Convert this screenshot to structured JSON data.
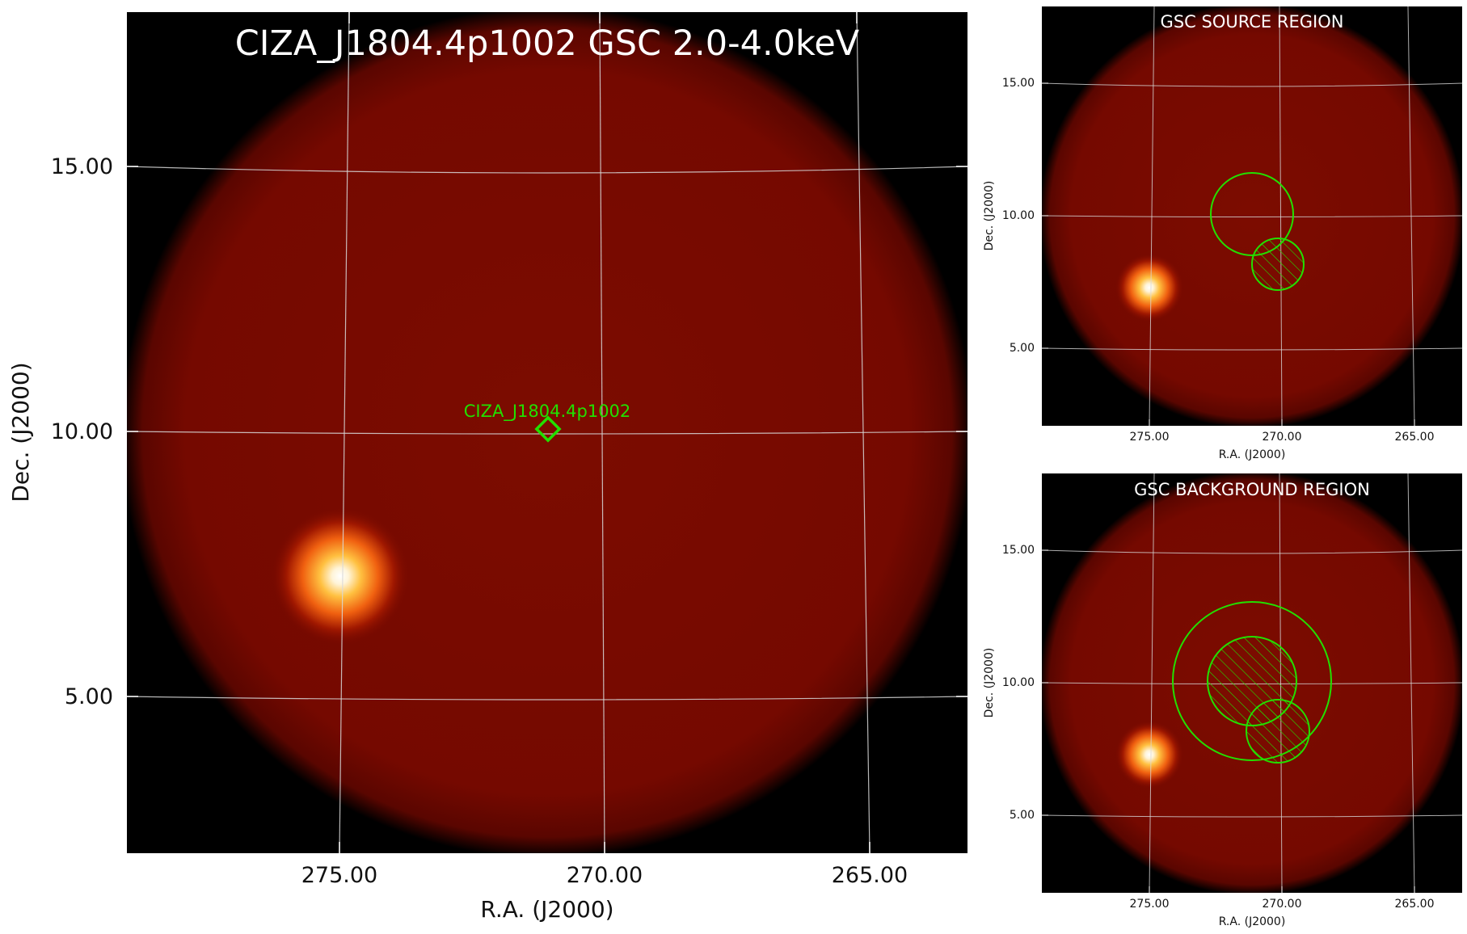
{
  "main_panel": {
    "title": "CIZA_J1804.4p1002 GSC 2.0-4.0keV",
    "xlabel": "R.A. (J2000)",
    "ylabel": "Dec. (J2000)",
    "xticks": [
      "275.00",
      "270.00",
      "265.00"
    ],
    "yticks": [
      "15.00",
      "10.00",
      "5.00"
    ],
    "source_label": "CIZA_J1804.4p1002",
    "marker_color": "#22e000"
  },
  "top_panel": {
    "title": "GSC SOURCE REGION",
    "xlabel": "R.A. (J2000)",
    "ylabel": "Dec. (J2000)",
    "xticks": [
      "275.00",
      "270.00",
      "265.00"
    ],
    "yticks": [
      "15.00",
      "10.00",
      "5.00"
    ]
  },
  "bottom_panel": {
    "title": "GSC BACKGROUND REGION",
    "xlabel": "R.A. (J2000)",
    "ylabel": "Dec. (J2000)",
    "xticks": [
      "275.00",
      "270.00",
      "265.00"
    ],
    "yticks": [
      "15.00",
      "10.00",
      "5.00"
    ]
  },
  "colors": {
    "field": "#790a00",
    "field_edge": "#000000",
    "grid": "#d8d8d8",
    "region": "#22e000",
    "title_text": "#ffffff"
  }
}
